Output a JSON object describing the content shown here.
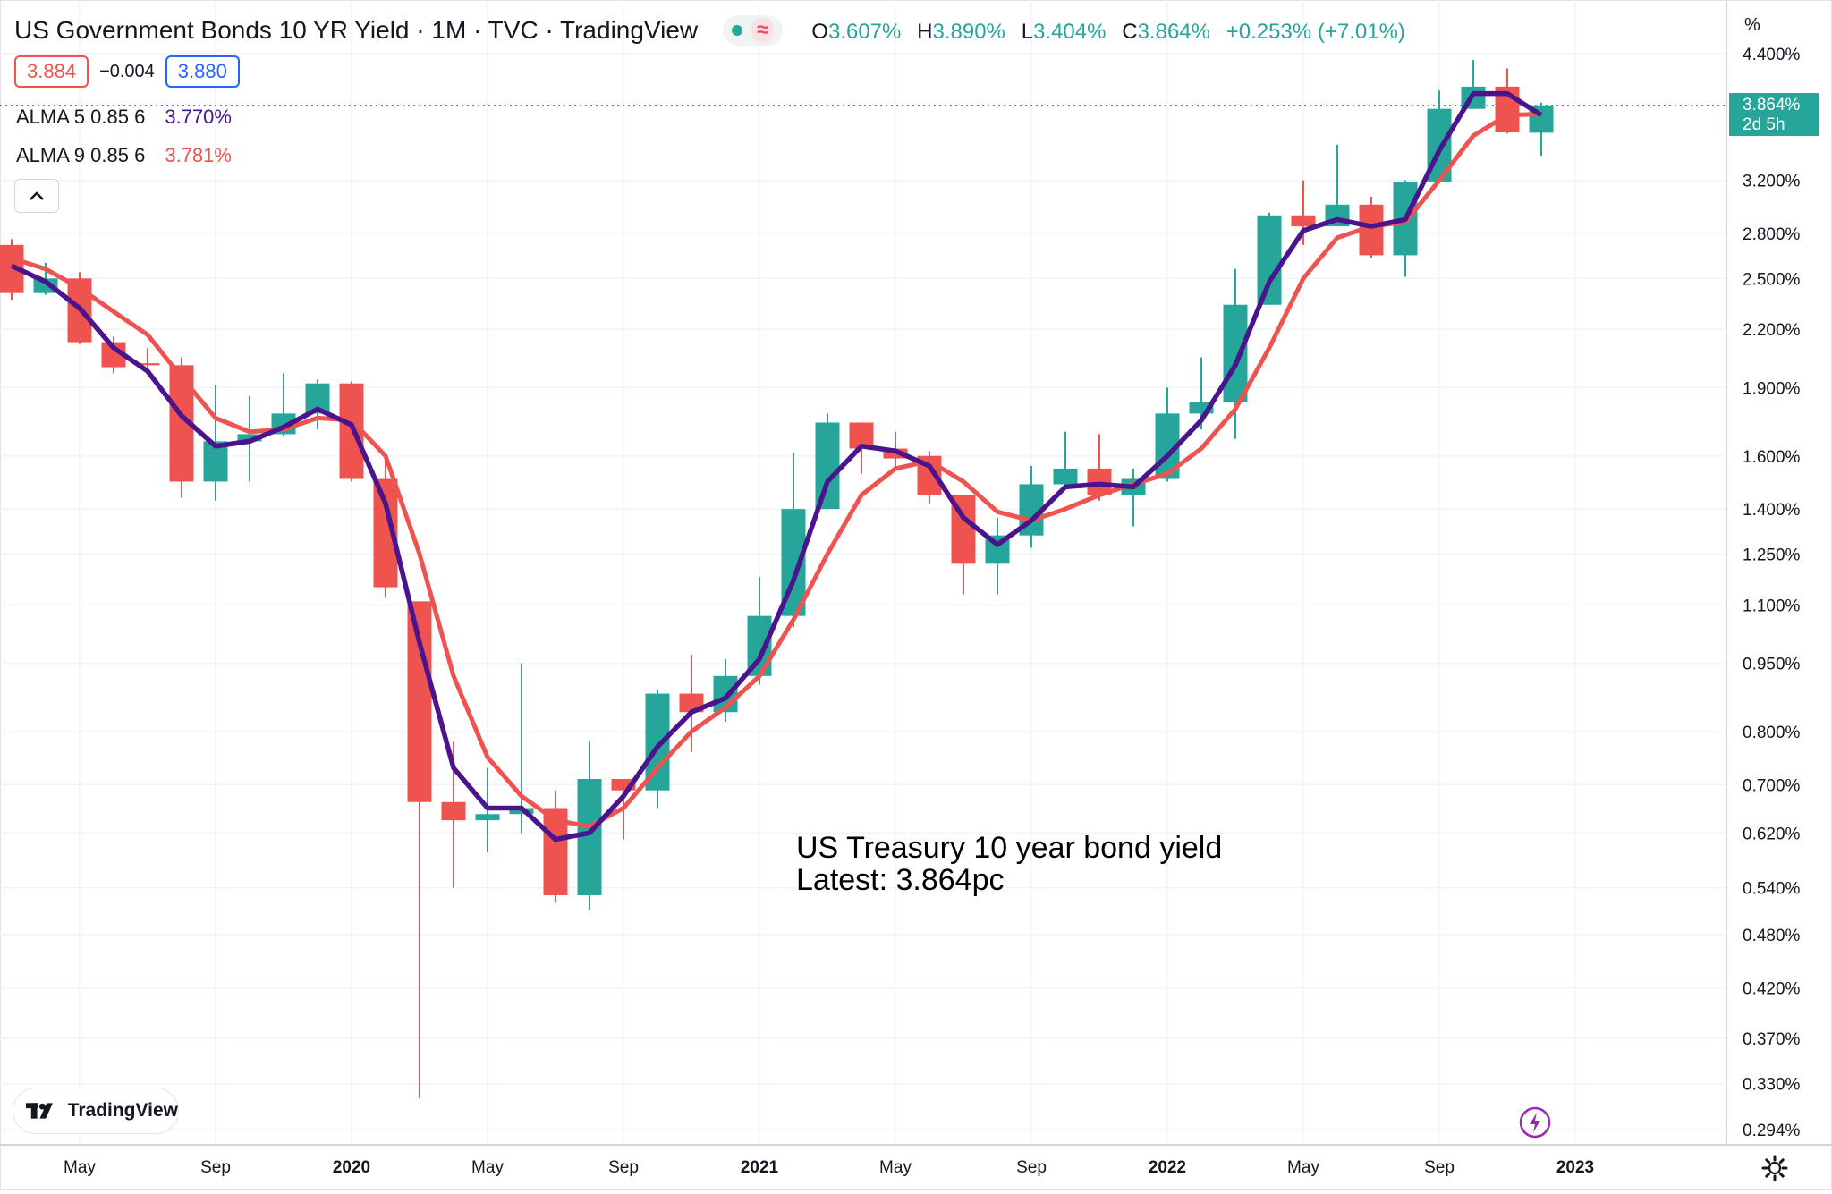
{
  "header": {
    "symbol_title": "US Government Bonds 10 YR Yield · 1M · TVC · TradingView",
    "ohlc": [
      {
        "label": "O",
        "value": "3.607%"
      },
      {
        "label": "H",
        "value": "3.890%"
      },
      {
        "label": "L",
        "value": "3.404%"
      },
      {
        "label": "C",
        "value": "3.864%"
      },
      {
        "label": "",
        "value": "+0.253% (+7.01%)"
      }
    ],
    "bid": "3.884",
    "spread": "−0.004",
    "ask": "3.880",
    "status_icon": "market-status-dot",
    "wave_icon": "≈"
  },
  "indicators": [
    {
      "name": "ALMA 5 0.85 6",
      "value": "3.770%",
      "color": "#4a148c"
    },
    {
      "name": "ALMA 9 0.85 6",
      "value": "3.781%",
      "color": "#ef5350"
    }
  ],
  "collapse_icon": "chevron-up-icon",
  "last_price": {
    "value": "3.864%",
    "countdown": "2d 5h"
  },
  "annotation": {
    "line1": "US Treasury 10 year bond yield",
    "line2": "Latest: 3.864pc"
  },
  "branding": {
    "logo_text": "TradingView",
    "logo_icon": "tradingview-logo-icon"
  },
  "icons": {
    "flash": "flash-icon",
    "settings": "gear-icon"
  },
  "colors": {
    "up": "#26a69a",
    "down": "#ef5350",
    "alma5": "#4a148c",
    "alma9": "#ef5350",
    "grid": "#f0f3fa"
  },
  "chart_data": {
    "type": "candlestick",
    "title": "US Government Bonds 10 YR Yield · 1M · TVC · TradingView",
    "y_unit_label": "%",
    "y_scale": "log",
    "ylim": [
      0.294,
      4.4
    ],
    "y_ticks": [
      "4.400%",
      "3.200%",
      "2.800%",
      "2.500%",
      "2.200%",
      "1.900%",
      "1.600%",
      "1.400%",
      "1.250%",
      "1.100%",
      "0.950%",
      "0.800%",
      "0.700%",
      "0.620%",
      "0.540%",
      "0.480%",
      "0.420%",
      "0.370%",
      "0.330%",
      "0.294%"
    ],
    "x_ticks": [
      "May",
      "Sep",
      "2020",
      "May",
      "Sep",
      "2021",
      "May",
      "Sep",
      "2022",
      "May",
      "Sep",
      "2023"
    ],
    "grid": true,
    "series": [
      {
        "name": "US Government Bonds 10 YR Yield",
        "kind": "ohlc",
        "months": [
          {
            "date": "2019-03",
            "o": 2.72,
            "h": 2.76,
            "l": 2.37,
            "c": 2.41
          },
          {
            "date": "2019-04",
            "o": 2.41,
            "h": 2.6,
            "l": 2.4,
            "c": 2.5
          },
          {
            "date": "2019-05",
            "o": 2.5,
            "h": 2.54,
            "l": 2.12,
            "c": 2.13
          },
          {
            "date": "2019-06",
            "o": 2.13,
            "h": 2.16,
            "l": 1.97,
            "c": 2.0
          },
          {
            "date": "2019-07",
            "o": 2.02,
            "h": 2.1,
            "l": 1.98,
            "c": 2.01
          },
          {
            "date": "2019-08",
            "o": 2.01,
            "h": 2.05,
            "l": 1.44,
            "c": 1.5
          },
          {
            "date": "2019-09",
            "o": 1.5,
            "h": 1.91,
            "l": 1.43,
            "c": 1.66
          },
          {
            "date": "2019-10",
            "o": 1.66,
            "h": 1.86,
            "l": 1.5,
            "c": 1.69
          },
          {
            "date": "2019-11",
            "o": 1.69,
            "h": 1.97,
            "l": 1.68,
            "c": 1.78
          },
          {
            "date": "2019-12",
            "o": 1.78,
            "h": 1.94,
            "l": 1.71,
            "c": 1.92
          },
          {
            "date": "2020-01",
            "o": 1.92,
            "h": 1.93,
            "l": 1.5,
            "c": 1.51
          },
          {
            "date": "2020-02",
            "o": 1.51,
            "h": 1.61,
            "l": 1.12,
            "c": 1.15
          },
          {
            "date": "2020-03",
            "o": 1.11,
            "h": 1.11,
            "l": 0.318,
            "c": 0.67
          },
          {
            "date": "2020-04",
            "o": 0.67,
            "h": 0.78,
            "l": 0.54,
            "c": 0.64
          },
          {
            "date": "2020-05",
            "o": 0.64,
            "h": 0.73,
            "l": 0.59,
            "c": 0.65
          },
          {
            "date": "2020-06",
            "o": 0.65,
            "h": 0.95,
            "l": 0.62,
            "c": 0.66
          },
          {
            "date": "2020-07",
            "o": 0.66,
            "h": 0.69,
            "l": 0.52,
            "c": 0.53
          },
          {
            "date": "2020-08",
            "o": 0.53,
            "h": 0.78,
            "l": 0.51,
            "c": 0.71
          },
          {
            "date": "2020-09",
            "o": 0.71,
            "h": 0.71,
            "l": 0.61,
            "c": 0.69
          },
          {
            "date": "2020-10",
            "o": 0.69,
            "h": 0.89,
            "l": 0.66,
            "c": 0.88
          },
          {
            "date": "2020-11",
            "o": 0.88,
            "h": 0.97,
            "l": 0.76,
            "c": 0.84
          },
          {
            "date": "2020-12",
            "o": 0.84,
            "h": 0.96,
            "l": 0.82,
            "c": 0.92
          },
          {
            "date": "2021-01",
            "o": 0.92,
            "h": 1.18,
            "l": 0.9,
            "c": 1.07
          },
          {
            "date": "2021-02",
            "o": 1.07,
            "h": 1.61,
            "l": 1.04,
            "c": 1.4
          },
          {
            "date": "2021-03",
            "o": 1.4,
            "h": 1.78,
            "l": 1.4,
            "c": 1.74
          },
          {
            "date": "2021-04",
            "o": 1.74,
            "h": 1.74,
            "l": 1.53,
            "c": 1.63
          },
          {
            "date": "2021-05",
            "o": 1.63,
            "h": 1.7,
            "l": 1.54,
            "c": 1.59
          },
          {
            "date": "2021-06",
            "o": 1.6,
            "h": 1.62,
            "l": 1.42,
            "c": 1.45
          },
          {
            "date": "2021-07",
            "o": 1.45,
            "h": 1.45,
            "l": 1.13,
            "c": 1.22
          },
          {
            "date": "2021-08",
            "o": 1.22,
            "h": 1.37,
            "l": 1.13,
            "c": 1.31
          },
          {
            "date": "2021-09",
            "o": 1.31,
            "h": 1.56,
            "l": 1.27,
            "c": 1.49
          },
          {
            "date": "2021-10",
            "o": 1.49,
            "h": 1.7,
            "l": 1.48,
            "c": 1.55
          },
          {
            "date": "2021-11",
            "o": 1.55,
            "h": 1.69,
            "l": 1.43,
            "c": 1.45
          },
          {
            "date": "2021-12",
            "o": 1.45,
            "h": 1.55,
            "l": 1.34,
            "c": 1.51
          },
          {
            "date": "2022-01",
            "o": 1.51,
            "h": 1.9,
            "l": 1.5,
            "c": 1.78
          },
          {
            "date": "2022-02",
            "o": 1.78,
            "h": 2.05,
            "l": 1.71,
            "c": 1.83
          },
          {
            "date": "2022-03",
            "o": 1.83,
            "h": 2.56,
            "l": 1.67,
            "c": 2.34
          },
          {
            "date": "2022-04",
            "o": 2.34,
            "h": 2.95,
            "l": 2.34,
            "c": 2.93
          },
          {
            "date": "2022-05",
            "o": 2.93,
            "h": 3.2,
            "l": 2.72,
            "c": 2.85
          },
          {
            "date": "2022-06",
            "o": 2.85,
            "h": 3.5,
            "l": 2.85,
            "c": 3.01
          },
          {
            "date": "2022-07",
            "o": 3.01,
            "h": 3.07,
            "l": 2.63,
            "c": 2.65
          },
          {
            "date": "2022-08",
            "o": 2.65,
            "h": 3.2,
            "l": 2.51,
            "c": 3.19
          },
          {
            "date": "2022-09",
            "o": 3.19,
            "h": 4.01,
            "l": 3.19,
            "c": 3.83
          },
          {
            "date": "2022-10",
            "o": 3.83,
            "h": 4.33,
            "l": 3.83,
            "c": 4.05
          },
          {
            "date": "2022-11",
            "o": 4.05,
            "h": 4.24,
            "l": 3.6,
            "c": 3.61
          },
          {
            "date": "2022-12",
            "o": 3.607,
            "h": 3.89,
            "l": 3.404,
            "c": 3.864
          }
        ]
      },
      {
        "name": "ALMA 5 0.85 6",
        "kind": "line",
        "values": [
          2.58,
          2.48,
          2.32,
          2.1,
          1.98,
          1.77,
          1.64,
          1.66,
          1.72,
          1.8,
          1.73,
          1.42,
          1.0,
          0.73,
          0.66,
          0.66,
          0.61,
          0.62,
          0.68,
          0.77,
          0.84,
          0.87,
          0.96,
          1.17,
          1.5,
          1.64,
          1.62,
          1.56,
          1.37,
          1.28,
          1.36,
          1.48,
          1.49,
          1.48,
          1.6,
          1.75,
          2.01,
          2.48,
          2.82,
          2.9,
          2.85,
          2.9,
          3.45,
          3.98,
          3.98,
          3.77
        ]
      },
      {
        "name": "ALMA 9 0.85 6",
        "kind": "line",
        "values": [
          2.63,
          2.56,
          2.44,
          2.3,
          2.17,
          1.95,
          1.76,
          1.7,
          1.71,
          1.76,
          1.75,
          1.6,
          1.25,
          0.92,
          0.75,
          0.68,
          0.64,
          0.63,
          0.66,
          0.73,
          0.8,
          0.85,
          0.92,
          1.06,
          1.25,
          1.45,
          1.55,
          1.58,
          1.5,
          1.39,
          1.36,
          1.4,
          1.45,
          1.49,
          1.53,
          1.63,
          1.8,
          2.1,
          2.5,
          2.77,
          2.85,
          2.88,
          3.2,
          3.58,
          3.77,
          3.78
        ]
      }
    ]
  }
}
